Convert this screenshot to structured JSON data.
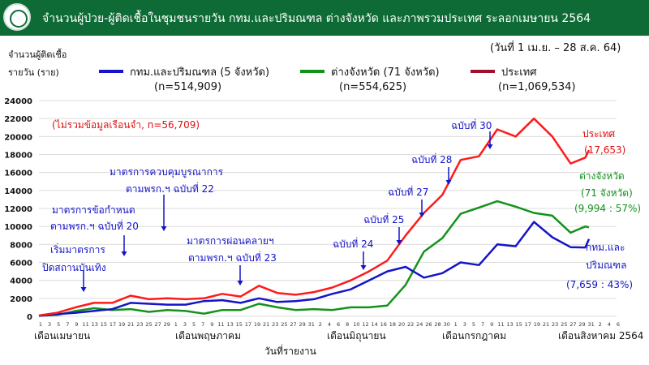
{
  "header": {
    "title": "จำนวนผู้ป่วย-ผู้ติดเชื้อในชุมชนรายวัน กทม.และปริมณฑล ต่างจังหวัด และภาพรวมประเทศ ระลอกเมษายน 2564",
    "logo": "ministry-of-public-health-logo"
  },
  "date_range": "(วันที่ 1 เม.ย. – 28 ส.ค. 64)",
  "colors": {
    "header": "#0f6b36",
    "bangkok": "#1414c8",
    "provinces": "#13921b",
    "country": "#ff1a1a",
    "country_legend": "#a0102e",
    "annotation": "#1414c8"
  },
  "chart_data": {
    "type": "line",
    "title": "จำนวนผู้ป่วย-ผู้ติดเชื้อในชุมชนรายวัน กทม.และปริมณฑล ต่างจังหวัด และภาพรวมประเทศ ระลอกเมษายน 2564",
    "ylabel": [
      "จำนวนผู้ติดเชื้อ",
      "รายวัน (ราย)"
    ],
    "xlabel": "วันที่รายงาน",
    "ylim": [
      0,
      24000
    ],
    "yticks": [
      "0",
      "2000",
      "4000",
      "6000",
      "8000",
      "10000",
      "12000",
      "14000",
      "16000",
      "18000",
      "20000",
      "22000",
      "24000"
    ],
    "grid": true,
    "legend_position": "top",
    "xtick_labels": [
      "1",
      "3",
      "5",
      "7",
      "9",
      "11",
      "13",
      "15",
      "17",
      "19",
      "21",
      "23",
      "25",
      "27",
      "29",
      "1",
      "3",
      "5",
      "7",
      "9",
      "11",
      "13",
      "15",
      "17",
      "19",
      "21",
      "23",
      "25",
      "27",
      "29",
      "31",
      "2",
      "4",
      "6",
      "8",
      "10",
      "12",
      "14",
      "16",
      "18",
      "20",
      "22",
      "24",
      "26",
      "28",
      "30",
      "1",
      "3",
      "5",
      "7",
      "9",
      "11",
      "13",
      "15",
      "17",
      "19",
      "21",
      "23",
      "25",
      "27",
      "29",
      "31",
      "2",
      "4",
      "6"
    ],
    "months": [
      "เดือนเมษายน",
      "เดือนพฤษภาคม",
      "เดือนมิถุนายน",
      "เดือนกรกฎาคม",
      "เดือนสิงหาคม 2564"
    ],
    "x": [
      "2021-04-01",
      "2021-04-06",
      "2021-04-11",
      "2021-04-16",
      "2021-04-21",
      "2021-04-26",
      "2021-05-01",
      "2021-05-06",
      "2021-05-11",
      "2021-05-16",
      "2021-05-21",
      "2021-05-26",
      "2021-05-31",
      "2021-06-05",
      "2021-06-10",
      "2021-06-15",
      "2021-06-20",
      "2021-06-25",
      "2021-06-30",
      "2021-07-05",
      "2021-07-10",
      "2021-07-15",
      "2021-07-20",
      "2021-07-25",
      "2021-07-30",
      "2021-08-04",
      "2021-08-09",
      "2021-08-14",
      "2021-08-19",
      "2021-08-24",
      "2021-08-29",
      "2021-08-28"
    ],
    "series": [
      {
        "name": "กทม.และปริมณฑล (5 จังหวัด)",
        "n": "(n=514,909)",
        "color": "#1414c8",
        "values": [
          50,
          250,
          400,
          600,
          800,
          1500,
          1400,
          1300,
          1300,
          1700,
          1800,
          1500,
          2000,
          1600,
          1700,
          1900,
          2500,
          3000,
          4000,
          5000,
          5500,
          4300,
          4800,
          6000,
          5700,
          8000,
          7800,
          10500,
          8800,
          7700,
          8600,
          7659
        ]
      },
      {
        "name": "ต่างจังหวัด (71 จังหวัด)",
        "n": "(n=554,625)",
        "color": "#13921b",
        "values": [
          50,
          150,
          600,
          900,
          700,
          800,
          500,
          700,
          600,
          300,
          700,
          700,
          1400,
          1000,
          700,
          800,
          700,
          1000,
          1000,
          1200,
          3500,
          7200,
          8700,
          11400,
          12100,
          12800,
          12200,
          11500,
          11200,
          9300,
          9900,
          9994
        ]
      },
      {
        "name": "ประเทศ",
        "n": "(n=1,069,534)",
        "color": "#ff1a1a",
        "values": [
          100,
          400,
          1000,
          1500,
          1500,
          2300,
          1900,
          2000,
          1900,
          2000,
          2500,
          2200,
          3400,
          2600,
          2400,
          2700,
          3200,
          4000,
          5000,
          6200,
          9000,
          11500,
          13500,
          17400,
          17800,
          20800,
          20000,
          22000,
          20000,
          17000,
          18500,
          17653
        ]
      }
    ]
  },
  "annotations": {
    "prison_note": "(ไม่รวมข้อมูลเรือนจำ, n=56,709)",
    "a22_l1": "มาตรการควบคุมบูรณาการ",
    "a22_l2": "ตามพรก.ฯ ฉบับที่ 22",
    "a20_l1": "มาตรการข้อกำหนด",
    "a20_l2": "ตามพรก.ฯ ฉบับที่ 20",
    "ent_l1": "เริ่มมาตรการ",
    "ent_l2": "ปิดสถานบันเทิง",
    "a23_l1": "มาตรการผ่อนคลายฯ",
    "a23_l2": "ตามพรก.ฯ ฉบับที่ 23",
    "a24": "ฉบับที่ 24",
    "a25": "ฉบับที่ 25",
    "a27": "ฉบับที่ 27",
    "a28": "ฉบับที่ 28",
    "a30": "ฉบับที่ 30"
  },
  "end_labels": {
    "country": "ประเทศ",
    "country_value": "(17,653)",
    "prov_l1": "ต่างจังหวัด",
    "prov_l2": "(71 จังหวัด)",
    "prov_value": "(9,994 : 57%)",
    "bkk_l1": "กทม.และ",
    "bkk_l2": "ปริมณฑล",
    "bkk_value": "(7,659 : 43%)"
  }
}
